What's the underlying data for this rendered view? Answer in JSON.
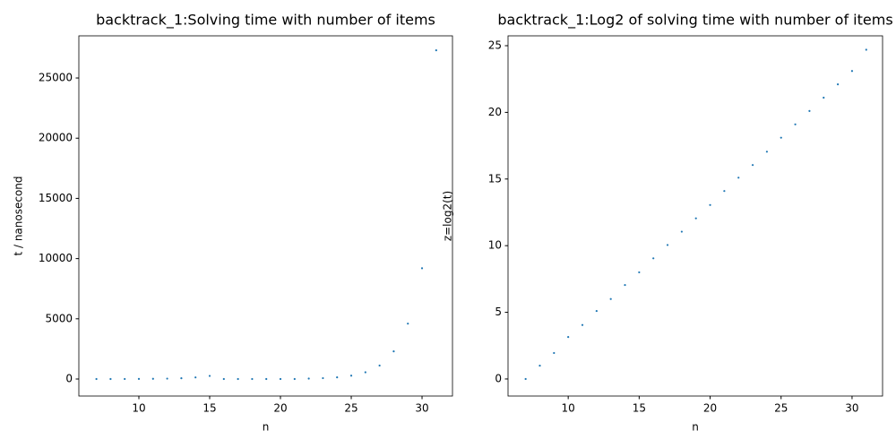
{
  "chart_data": [
    {
      "type": "scatter",
      "title": "backtrack_1:Solving time with number of items",
      "x_label": "n",
      "y_label": "t / nanosecond",
      "x": [
        7,
        8,
        9,
        10,
        11,
        12,
        13,
        14,
        15,
        16,
        17,
        18,
        19,
        20,
        21,
        22,
        23,
        24,
        25,
        26,
        27,
        28,
        29,
        30,
        31
      ],
      "values": [
        1,
        2,
        4,
        9,
        17,
        34,
        64,
        133,
        256,
        0,
        0,
        0,
        0,
        0,
        0,
        35,
        70,
        140,
        280,
        560,
        1120,
        2300,
        4600,
        9200,
        27300
      ],
      "color": "#1f77b4",
      "xlim": [
        5.76,
        32.15
      ],
      "ylim": [
        -1414,
        28500
      ],
      "xticks": [
        10,
        15,
        20,
        25,
        30
      ],
      "yticks": [
        0,
        5000,
        10000,
        15000,
        20000,
        25000
      ]
    },
    {
      "type": "scatter",
      "title": "backtrack_1:Log2 of solving time with number of items",
      "x_label": "n",
      "y_label": "z=log2(t)",
      "x": [
        7,
        8,
        9,
        10,
        11,
        12,
        13,
        14,
        15,
        16,
        17,
        18,
        19,
        20,
        21,
        22,
        23,
        24,
        25,
        26,
        27,
        28,
        29,
        30,
        31
      ],
      "values": [
        0,
        1,
        1.95,
        3.15,
        4.05,
        5.1,
        6,
        7.05,
        8,
        9.05,
        10.05,
        11.05,
        12.05,
        13.05,
        14.1,
        15.1,
        16.05,
        17.05,
        18.1,
        19.1,
        20.1,
        21.1,
        22.1,
        23.1,
        24.7
      ],
      "color": "#1f77b4",
      "xlim": [
        5.76,
        32.15
      ],
      "ylim": [
        -1.28,
        25.74
      ],
      "xticks": [
        10,
        15,
        20,
        25,
        30
      ],
      "yticks": [
        0,
        5,
        10,
        15,
        20,
        25
      ]
    }
  ]
}
